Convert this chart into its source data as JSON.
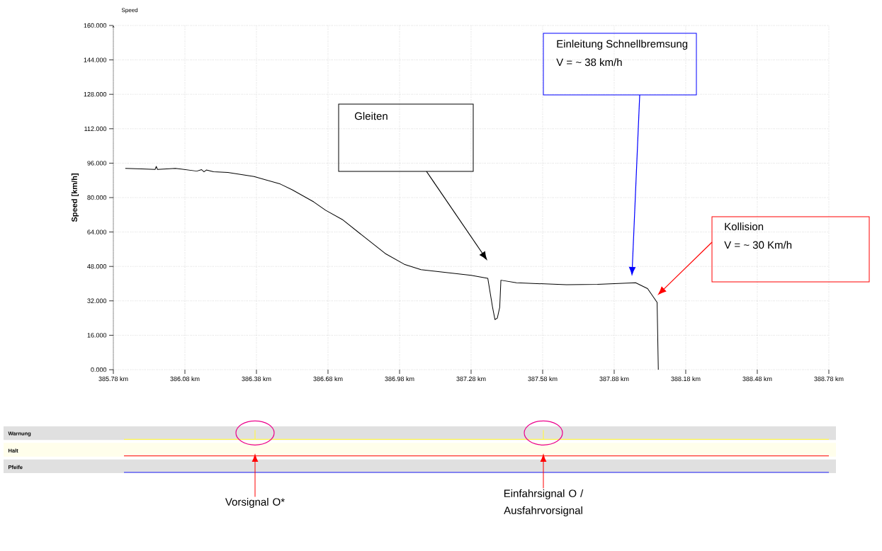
{
  "chart_data": [
    {
      "type": "line",
      "title": "Speed",
      "ylabel": "Speed [km/h]",
      "color": "#000000",
      "x": [
        385.83,
        385.9,
        385.955,
        385.96,
        385.965,
        386.04,
        386.13,
        386.15,
        386.16,
        386.17,
        386.2,
        386.26,
        386.37,
        386.48,
        386.53,
        386.62,
        386.67,
        386.74,
        386.84,
        386.92,
        387.0,
        387.07,
        387.28,
        387.35,
        387.37,
        387.38,
        387.39,
        387.4,
        387.405,
        387.47,
        387.68,
        387.81,
        387.97,
        388.02,
        388.06,
        388.065
      ],
      "values": [
        93.6,
        93.3,
        93.1,
        94.5,
        93.1,
        93.6,
        92.3,
        93.0,
        92.0,
        92.8,
        92.0,
        91.7,
        89.8,
        86.3,
        83.6,
        78,
        74.1,
        69.8,
        61,
        54,
        49,
        46.5,
        43.9,
        42.5,
        29,
        23.3,
        24,
        29,
        41.6,
        40.4,
        39.5,
        39.7,
        40.4,
        37.7,
        31.3,
        0
      ],
      "xlim": [
        385.78,
        388.78
      ],
      "ylim": [
        0,
        160
      ],
      "xticks": [
        {
          "value": 385.78,
          "label": "385.78 km"
        },
        {
          "value": 386.08,
          "label": "386.08 km"
        },
        {
          "value": 386.38,
          "label": "386.38 km"
        },
        {
          "value": 386.68,
          "label": "386.68 km"
        },
        {
          "value": 386.98,
          "label": "386.98 km"
        },
        {
          "value": 387.28,
          "label": "387.28 km"
        },
        {
          "value": 387.58,
          "label": "387.58 km"
        },
        {
          "value": 387.88,
          "label": "387.88 km"
        },
        {
          "value": 388.18,
          "label": "388.18 km"
        },
        {
          "value": 388.48,
          "label": "388.48 km"
        },
        {
          "value": 388.78,
          "label": "388.78 km"
        }
      ],
      "yticks": [
        {
          "value": 0,
          "label": "0.000"
        },
        {
          "value": 16,
          "label": "16.000"
        },
        {
          "value": 32,
          "label": "32.000"
        },
        {
          "value": 48,
          "label": "48.000"
        },
        {
          "value": 64,
          "label": "64.000"
        },
        {
          "value": 80,
          "label": "80.000"
        },
        {
          "value": 96,
          "label": "96.000"
        },
        {
          "value": 112,
          "label": "112.000"
        },
        {
          "value": 128,
          "label": "128.000"
        },
        {
          "value": 144,
          "label": "144.000"
        },
        {
          "value": 160,
          "label": "160.000"
        }
      ],
      "grid": true,
      "annotations": [
        "Gleiten",
        "Einleitung Schnellbremsung",
        "V = ~ 38 km/h",
        "Kollision",
        "V = ~ 30 Km/h"
      ]
    },
    {
      "type": "other",
      "categories": [
        "Warnung",
        "Halt",
        "Pfeife"
      ],
      "annotations": [
        "Vorsignal O*",
        "Einfahrsignal O / Ausfahrvorsignal"
      ]
    }
  ]
}
